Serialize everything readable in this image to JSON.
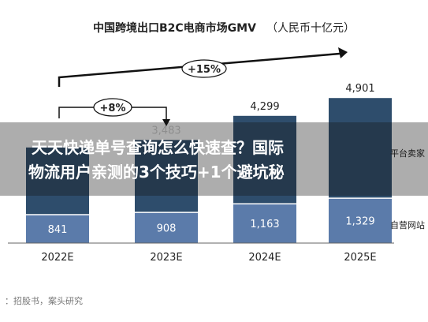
{
  "chart_data": {
    "type": "bar",
    "title": "中国跨境出口B2C电商市场GMV",
    "unit": "（人民币十亿元）",
    "categories": [
      "2022E",
      "2023E",
      "2024E",
      "2025E"
    ],
    "series": [
      {
        "name": "自营网站",
        "values": [
          841,
          908,
          1163,
          1329
        ]
      },
      {
        "name": "平台卖家",
        "values": [
          null,
          null,
          null,
          null
        ]
      }
    ],
    "totals": [
      "",
      "3,483",
      "4,299",
      "4,901"
    ],
    "bottom_labels": [
      "841",
      "908",
      "1,163",
      "1,329"
    ],
    "growth_annotations": [
      {
        "label": "+8%",
        "from": "2022E",
        "to": "2023E"
      },
      {
        "label": "+15%",
        "from": "2022E",
        "to": "2025E"
      }
    ],
    "legend_partial": [
      "平台卖家",
      "自营网站"
    ],
    "ylim": [
      0,
      5000
    ],
    "colors": {
      "dark": "#2e4d6c",
      "light": "#5b7baa",
      "text": "#222222"
    }
  },
  "overlay": {
    "line1": "天天快递单号查询怎么快速查？国际",
    "line2": "物流用户亲测的3个技巧+1个避坑秘"
  },
  "source": "：招股书，案头研究",
  "watermark_glyph": "3"
}
